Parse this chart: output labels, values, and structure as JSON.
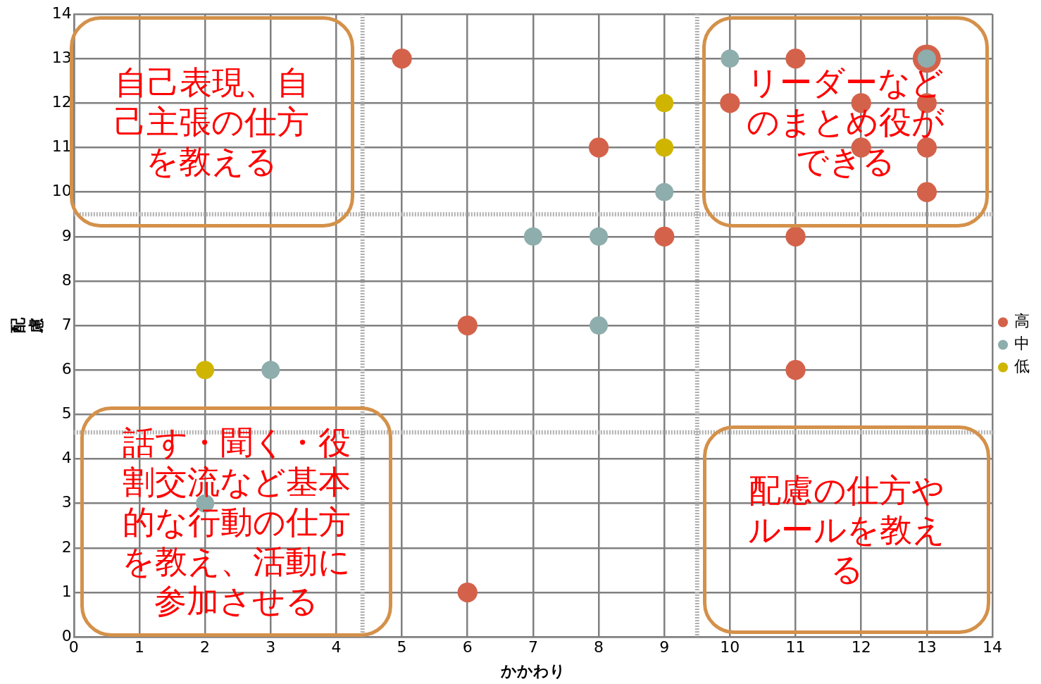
{
  "chart_data": {
    "type": "scatter",
    "xlabel": "かかわり",
    "ylabel": "配慮",
    "xlim": [
      0,
      14
    ],
    "xticks": [
      0,
      1,
      2,
      3,
      4,
      5,
      6,
      7,
      8,
      9,
      10,
      11,
      12,
      13,
      14
    ],
    "ylim": [
      0,
      14
    ],
    "yticks": [
      0,
      1,
      2,
      3,
      4,
      5,
      6,
      7,
      8,
      9,
      10,
      11,
      12,
      13,
      14
    ],
    "grid": true,
    "legend": "right",
    "marker": "circle",
    "series": [
      {
        "name": "高",
        "color": "#d4624a",
        "x": [
          5,
          6,
          6,
          8,
          9,
          10,
          11,
          11,
          11,
          12,
          12,
          13,
          13,
          13,
          13
        ],
        "values": [
          13,
          7,
          1,
          11,
          9,
          12,
          13,
          9,
          6,
          12,
          11,
          13,
          12,
          11,
          10
        ],
        "sizes": [
          0.5,
          0.5,
          0.5,
          0.5,
          0.5,
          0.5,
          0.5,
          0.5,
          0.5,
          0.5,
          0.5,
          1,
          0.5,
          0.5,
          0.5
        ]
      },
      {
        "name": "中",
        "color": "#8eadad",
        "x": [
          10,
          13,
          9,
          7,
          8,
          8,
          3,
          2
        ],
        "values": [
          13,
          13,
          10,
          9,
          9,
          7,
          6,
          3
        ]
      },
      {
        "name": "低",
        "color": "#cfb500",
        "x": [
          9,
          9,
          2
        ],
        "values": [
          12,
          11,
          6
        ]
      }
    ],
    "ref_lines": [
      {
        "axis": "x",
        "value": 4.4,
        "color": "#b0b0b0",
        "line_style": "dotted"
      },
      {
        "axis": "x",
        "value": 9.5,
        "color": "#b0b0b0",
        "line_style": "dotted"
      },
      {
        "axis": "y",
        "value": 9.5,
        "color": "#b0b0b0",
        "line_style": "dotted"
      },
      {
        "axis": "y",
        "value": 4.6,
        "color": "#b0b0b0",
        "line_style": "dotted"
      }
    ],
    "annotations": [
      "自己表現、自己主張の仕方を教える",
      "リーダーなどのまとめ役ができる",
      "話す・聞く・役割交流など基本的な行動の仕方を教え、活動に参加させる",
      "配慮の仕方やルールを教える"
    ]
  }
}
